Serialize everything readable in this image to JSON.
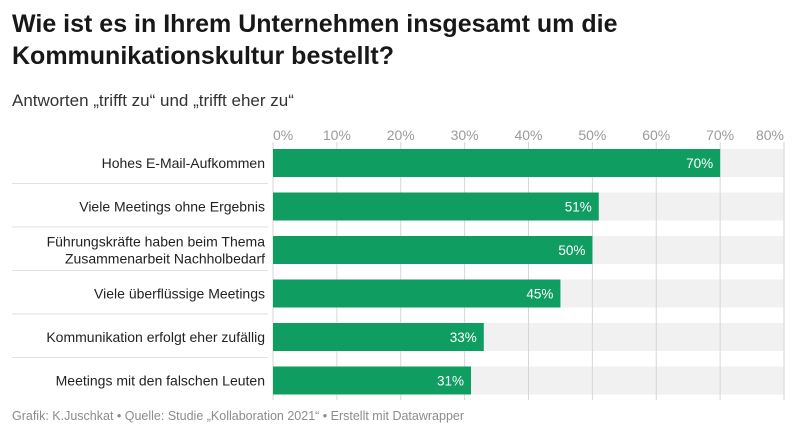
{
  "title": "Wie ist es in Ihrem Unternehmen insgesamt um die Kommunikationskultur bestellt?",
  "subtitle": "Antworten „trifft zu“ und „trifft eher zu“",
  "footer": "Grafik: K.Juschkat • Quelle: Studie „Kollaboration 2021“ • Erstellt mit Datawrapper",
  "colors": {
    "bar": "#0f9d62",
    "track": "#f1f1f1",
    "grid": "#d6d6d6",
    "row_divider": "#e2e2e2"
  },
  "chart_data": {
    "type": "bar",
    "orientation": "horizontal",
    "categories": [
      [
        "Hohes E-Mail-Aufkommen"
      ],
      [
        "Viele Meetings ohne Ergebnis"
      ],
      [
        "Führungskräfte haben beim Thema",
        "Zusammenarbeit Nachholbedarf"
      ],
      [
        "Viele überflüssige Meetings"
      ],
      [
        "Kommunikation erfolgt eher zufällig"
      ],
      [
        "Meetings mit den falschen Leuten"
      ]
    ],
    "values": [
      70,
      51,
      50,
      45,
      33,
      31
    ],
    "value_labels": [
      "70%",
      "51%",
      "50%",
      "45%",
      "33%",
      "31%"
    ],
    "xlim": [
      0,
      80
    ],
    "ticks": [
      0,
      10,
      20,
      30,
      40,
      50,
      60,
      70,
      80
    ],
    "tick_labels": [
      "0%",
      "10%",
      "20%",
      "30%",
      "40%",
      "50%",
      "60%",
      "70%",
      "80%"
    ],
    "legend": "none",
    "grid": true
  }
}
